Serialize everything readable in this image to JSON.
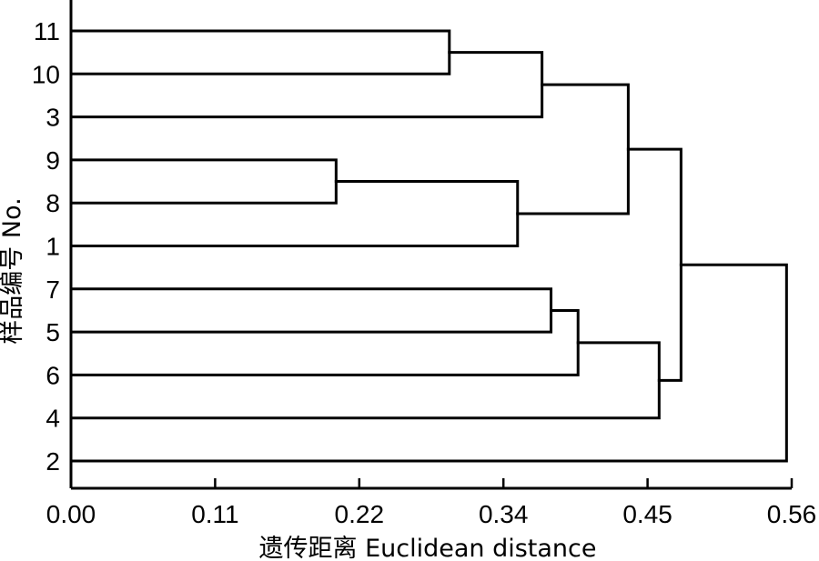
{
  "chart_data": {
    "type": "dendrogram",
    "xlabel": "遗传距离 Euclidean distance",
    "ylabel": "样品编号 No.",
    "xticks": [
      "0.00",
      "0.11",
      "0.22",
      "0.34",
      "0.45",
      "0.56"
    ],
    "xlim": [
      0,
      0.56
    ],
    "leaves": [
      "11",
      "10",
      "3",
      "9",
      "8",
      "1",
      "7",
      "5",
      "6",
      "4",
      "2"
    ],
    "merges": [
      {
        "id": "c1",
        "children": [
          "11",
          "10"
        ],
        "height": 0.294
      },
      {
        "id": "c2",
        "children": [
          "c1",
          "3"
        ],
        "height": 0.366
      },
      {
        "id": "c3",
        "children": [
          "9",
          "8"
        ],
        "height": 0.206
      },
      {
        "id": "c4",
        "children": [
          "c3",
          "1"
        ],
        "height": 0.347
      },
      {
        "id": "c5",
        "children": [
          "c2",
          "c4"
        ],
        "height": 0.433
      },
      {
        "id": "c6",
        "children": [
          "7",
          "5"
        ],
        "height": 0.373
      },
      {
        "id": "c7",
        "children": [
          "c6",
          "6"
        ],
        "height": 0.394
      },
      {
        "id": "c8",
        "children": [
          "c7",
          "4"
        ],
        "height": 0.457
      },
      {
        "id": "c9",
        "children": [
          "c5",
          "c8"
        ],
        "height": 0.474
      },
      {
        "id": "c10",
        "children": [
          "c9",
          "2"
        ],
        "height": 0.556
      }
    ]
  }
}
